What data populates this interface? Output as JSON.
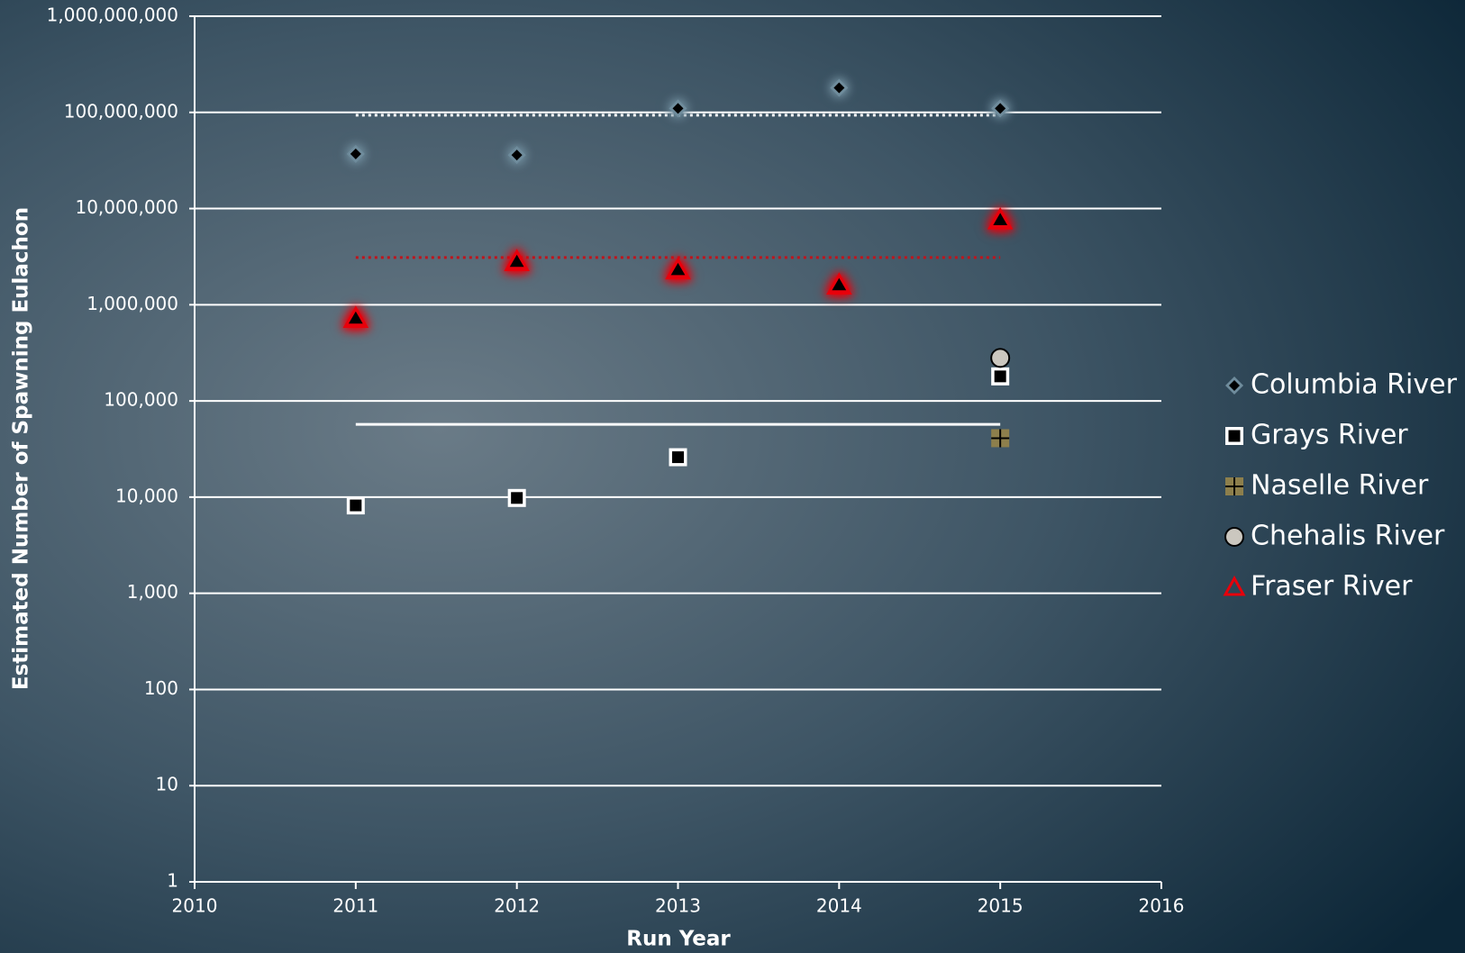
{
  "chart_data": {
    "type": "scatter",
    "x_label": "Run Year",
    "y_label": "Estimated Number of Spawning Eulachon",
    "xlim": [
      2010,
      2016
    ],
    "xticks": [
      2010,
      2011,
      2012,
      2013,
      2014,
      2015,
      2016
    ],
    "ylim": [
      1,
      1000000000
    ],
    "log_y": true,
    "grid": true,
    "legend": "right",
    "yticks": [
      1,
      10,
      100,
      {
        "value": 1000,
        "label": "1,000"
      },
      {
        "value": 10000,
        "label": "10,000"
      },
      {
        "value": 100000,
        "label": "100,000"
      },
      {
        "value": 1000000,
        "label": "1,000,000"
      },
      {
        "value": 10000000,
        "label": "10,000,000"
      },
      {
        "value": 100000000,
        "label": "100,000,000"
      },
      {
        "value": 1000000000,
        "label": "1,000,000,000"
      }
    ],
    "series": [
      {
        "name": "Columbia River",
        "marker": "diamond",
        "color": "#6f8c9c",
        "glow": true,
        "x": [
          2011,
          2012,
          2013,
          2014,
          2015
        ],
        "values": [
          37000000,
          36000000,
          110000000,
          180000000,
          110000000
        ]
      },
      {
        "name": "Grays River",
        "marker": "square",
        "color": "#ffffff",
        "x": [
          2011,
          2012,
          2013,
          2015
        ],
        "values": [
          8200,
          9800,
          26000,
          180000
        ]
      },
      {
        "name": "Naselle River",
        "marker": "plus-square",
        "color": "#8d7f4c",
        "x": [
          2015
        ],
        "values": [
          41000
        ]
      },
      {
        "name": "Chehalis River",
        "marker": "circle",
        "color": "#cbc7bf",
        "x": [
          2015
        ],
        "values": [
          280000
        ]
      },
      {
        "name": "Fraser River",
        "marker": "triangle",
        "color": "#e8000b",
        "glow": true,
        "x": [
          2011,
          2012,
          2013,
          2014,
          2015
        ],
        "values": [
          720000,
          2800000,
          2300000,
          1600000,
          7600000
        ]
      }
    ],
    "reference_lines": [
      {
        "value": 93500000,
        "x": [
          2011,
          2015
        ],
        "color": "#ffffff",
        "style": "dotted"
      },
      {
        "value": 3100000,
        "x": [
          2011,
          2015
        ],
        "color": "#c0141c",
        "style": "dotted"
      },
      {
        "value": 57000,
        "x": [
          2011,
          2015
        ],
        "color": "#ffffff",
        "style": "solid"
      }
    ]
  }
}
